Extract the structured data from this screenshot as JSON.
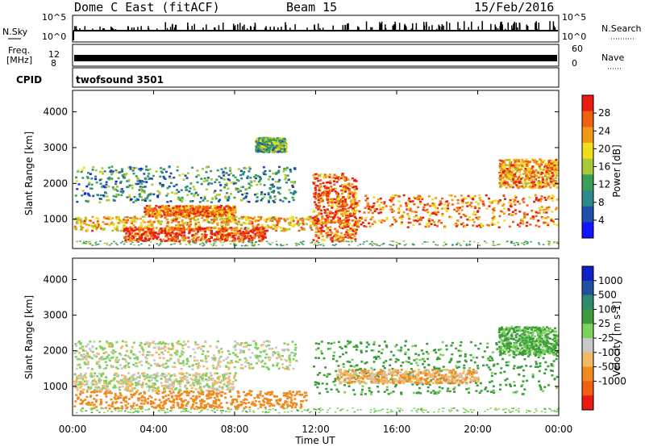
{
  "header": {
    "station": "Dome C East (fitACF)",
    "beam": "Beam 15",
    "date": "15/Feb/2016"
  },
  "strips": {
    "nsky_label": "N.Sky",
    "nsearch_label": "N.Search",
    "nsky_ticks": [
      "10^5",
      "10^0"
    ],
    "nsearch_ticks": [
      "10^5",
      "10^0"
    ],
    "freq_label_1": "Freq.",
    "freq_label_2": "[MHz]",
    "freq_ticks": [
      "12",
      "8"
    ],
    "nave_label": "Nave",
    "nave_ticks": [
      "60",
      "0"
    ],
    "cpid_label": "CPID",
    "cpid_value": "twofsound 3501"
  },
  "colors": {
    "power": [
      "#1414ff",
      "#1f4fa8",
      "#2e8a8a",
      "#3aa055",
      "#a8c838",
      "#f2dc1e",
      "#f29a16",
      "#f06010",
      "#e81c10"
    ],
    "velocity": [
      "#e81c10",
      "#f06010",
      "#f08a1e",
      "#f2b864",
      "#c8c8c8",
      "#7cd25a",
      "#3c9c3c",
      "#2e8a6e",
      "#2050a0",
      "#1020c8"
    ]
  },
  "chart_data": [
    {
      "type": "heatmap",
      "quantity": "power",
      "ylabel": "Slant Range [km]",
      "xlabel": "",
      "xlim": [
        "00:00",
        "24:00"
      ],
      "ylim": [
        180,
        4600
      ],
      "yticks": [
        "1000",
        "2000",
        "3000",
        "4000"
      ],
      "colorbar_label": "Power [dB]",
      "colorbar_ticks": [
        "4",
        "8",
        "12",
        "16",
        "20",
        "24",
        "28"
      ],
      "colorbar_range": [
        0,
        30
      ],
      "regions": [
        {
          "t_start": 0.0,
          "t_end": 12.0,
          "r_low": 700,
          "r_high": 1100,
          "value": 20
        },
        {
          "t_start": 2.5,
          "t_end": 9.5,
          "r_low": 400,
          "r_high": 800,
          "value": 27
        },
        {
          "t_start": 3.5,
          "t_end": 8.0,
          "r_low": 1100,
          "r_high": 1400,
          "value": 24
        },
        {
          "t_start": 11.8,
          "t_end": 14.0,
          "r_low": 400,
          "r_high": 2300,
          "value": 25
        },
        {
          "t_start": 13.0,
          "t_end": 24.0,
          "r_low": 800,
          "r_high": 1700,
          "value": 24
        },
        {
          "t_start": 0.0,
          "t_end": 11.0,
          "r_low": 1500,
          "r_high": 2500,
          "value": 10
        },
        {
          "t_start": 9.0,
          "t_end": 10.5,
          "r_low": 2900,
          "r_high": 3300,
          "value": 12
        },
        {
          "t_start": 21.0,
          "t_end": 24.0,
          "r_low": 1900,
          "r_high": 2700,
          "value": 22
        }
      ]
    },
    {
      "type": "heatmap",
      "quantity": "velocity",
      "ylabel": "Slant Range [km]",
      "xlabel": "Time UT",
      "xlim": [
        "00:00",
        "24:00"
      ],
      "xticks": [
        "00:00",
        "04:00",
        "08:00",
        "12:00",
        "16:00",
        "20:00",
        "00:00"
      ],
      "ylim": [
        180,
        4600
      ],
      "yticks": [
        "1000",
        "2000",
        "3000",
        "4000"
      ],
      "colorbar_label": "Velocity [m s-1]",
      "colorbar_ticks": [
        "1000",
        "500",
        "100",
        "25",
        "-25",
        "-100",
        "-500",
        "-1000"
      ],
      "regions": [
        {
          "t_start": 0.0,
          "t_end": 11.5,
          "r_low": 400,
          "r_high": 900,
          "value": -300
        },
        {
          "t_start": 0.0,
          "t_end": 8.0,
          "r_low": 900,
          "r_high": 1400,
          "value": 0
        },
        {
          "t_start": 11.8,
          "t_end": 24.0,
          "r_low": 800,
          "r_high": 2300,
          "value": 150
        },
        {
          "t_start": 13.0,
          "t_end": 20.0,
          "r_low": 1100,
          "r_high": 1500,
          "value": -80
        },
        {
          "t_start": 0.0,
          "t_end": 11.0,
          "r_low": 1500,
          "r_high": 2300,
          "value": 20
        },
        {
          "t_start": 21.0,
          "t_end": 24.0,
          "r_low": 1900,
          "r_high": 2700,
          "value": 120
        }
      ]
    }
  ]
}
